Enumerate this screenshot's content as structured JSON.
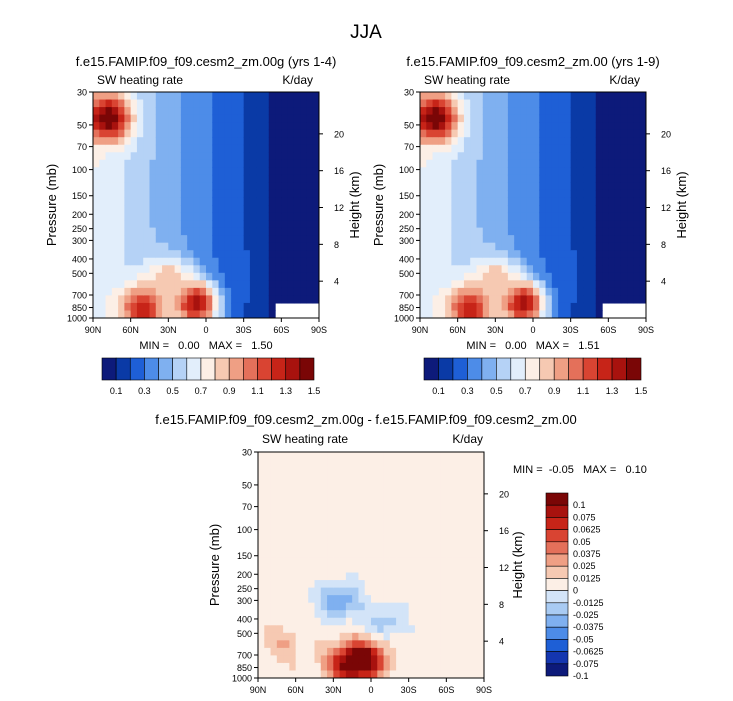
{
  "page_title": "JJA",
  "colors": {
    "background": "#ffffff",
    "text": "#000000",
    "absolute_scale": [
      "#0d1a7a",
      "#0a3aa6",
      "#1e5fd6",
      "#4d8ce8",
      "#7fb0f0",
      "#b5d2f6",
      "#e2eefb",
      "#fcefe6",
      "#f6c9b2",
      "#ef9f84",
      "#e4705a",
      "#d94432",
      "#c72418",
      "#a8120e",
      "#7a0606"
    ],
    "difference_scale": [
      "#0d1a7a",
      "#1436b0",
      "#1e5fd6",
      "#4d8ce8",
      "#7fb0f0",
      "#a9cbf3",
      "#d3e4f8",
      "#fcefe6",
      "#f6c9b2",
      "#ef9f84",
      "#e4705a",
      "#d94432",
      "#c72418",
      "#a8120e",
      "#7a0606"
    ]
  },
  "chart_data": [
    {
      "type": "heatmap",
      "title": "f.e15.FAMIP.f09_f09.cesm2_zm.00g (yrs 1-4)",
      "variable_label": "SW heating rate",
      "units_label": "K/day",
      "ylabel": "Pressure (mb)",
      "ylabel_right": "Height (km)",
      "x_tick_labels": [
        "90N",
        "60N",
        "30N",
        "0",
        "30S",
        "60S",
        "90S"
      ],
      "x_values": [
        90,
        60,
        30,
        0,
        -30,
        -60,
        -90
      ],
      "xlim": [
        90,
        -90
      ],
      "y_tick_labels": [
        "30",
        "50",
        "70",
        "100",
        "150",
        "200",
        "250",
        "300",
        "400",
        "500",
        "700",
        "850",
        "1000"
      ],
      "y_values": [
        30,
        50,
        70,
        100,
        150,
        200,
        250,
        300,
        400,
        500,
        700,
        850,
        1000
      ],
      "ylim": [
        30,
        1000
      ],
      "y_right_tick_labels": [
        "20",
        "16",
        "12",
        "8",
        "4"
      ],
      "y_right_values": [
        20,
        16,
        12,
        8,
        4
      ],
      "stats_text": "MIN =   0.00   MAX =   1.50",
      "min": 0.0,
      "max": 1.5,
      "colorbar_labels": [
        "0.1",
        "0.3",
        "0.5",
        "0.7",
        "0.9",
        "1.1",
        "1.3",
        "1.5"
      ],
      "colorbar_levels": [
        0.1,
        0.2,
        0.3,
        0.4,
        0.5,
        0.6,
        0.7,
        0.8,
        0.9,
        1.0,
        1.1,
        1.2,
        1.3,
        1.4,
        1.5
      ],
      "features": [
        {
          "lat": 50,
          "p": 850,
          "value": 1.3
        },
        {
          "lat": 8,
          "p": 790,
          "value": 1.4
        },
        {
          "lat": 30,
          "p": 550,
          "value": 0.9
        },
        {
          "lat": 78,
          "p": 45,
          "value": 1.5
        },
        {
          "lat": -30,
          "p": 500,
          "value": 0.25
        },
        {
          "lat": -75,
          "p": 400,
          "value": 0.05
        }
      ]
    },
    {
      "type": "heatmap",
      "title": "f.e15.FAMIP.f09_f09.cesm2_zm.00 (yrs 1-9)",
      "variable_label": "SW heating rate",
      "units_label": "K/day",
      "ylabel": "Pressure (mb)",
      "ylabel_right": "Height (km)",
      "x_tick_labels": [
        "90N",
        "60N",
        "30N",
        "0",
        "30S",
        "60S",
        "90S"
      ],
      "x_values": [
        90,
        60,
        30,
        0,
        -30,
        -60,
        -90
      ],
      "xlim": [
        90,
        -90
      ],
      "y_tick_labels": [
        "30",
        "50",
        "70",
        "100",
        "150",
        "200",
        "250",
        "300",
        "400",
        "500",
        "700",
        "850",
        "1000"
      ],
      "y_values": [
        30,
        50,
        70,
        100,
        150,
        200,
        250,
        300,
        400,
        500,
        700,
        850,
        1000
      ],
      "ylim": [
        30,
        1000
      ],
      "y_right_tick_labels": [
        "20",
        "16",
        "12",
        "8",
        "4"
      ],
      "y_right_values": [
        20,
        16,
        12,
        8,
        4
      ],
      "stats_text": "MIN =   0.00   MAX =   1.51",
      "min": 0.0,
      "max": 1.51,
      "colorbar_labels": [
        "0.1",
        "0.3",
        "0.5",
        "0.7",
        "0.9",
        "1.1",
        "1.3",
        "1.5"
      ],
      "colorbar_levels": [
        0.1,
        0.2,
        0.3,
        0.4,
        0.5,
        0.6,
        0.7,
        0.8,
        0.9,
        1.0,
        1.1,
        1.2,
        1.3,
        1.4,
        1.5
      ],
      "features": [
        {
          "lat": 50,
          "p": 850,
          "value": 1.3
        },
        {
          "lat": 8,
          "p": 790,
          "value": 1.4
        },
        {
          "lat": 30,
          "p": 550,
          "value": 0.9
        },
        {
          "lat": 78,
          "p": 45,
          "value": 1.5
        },
        {
          "lat": -30,
          "p": 500,
          "value": 0.25
        },
        {
          "lat": -75,
          "p": 400,
          "value": 0.05
        }
      ]
    },
    {
      "type": "heatmap",
      "title": "f.e15.FAMIP.f09_f09.cesm2_zm.00g - f.e15.FAMIP.f09_f09.cesm2_zm.00",
      "variable_label": "SW heating rate",
      "units_label": "K/day",
      "ylabel": "Pressure (mb)",
      "ylabel_right": "Height (km)",
      "x_tick_labels": [
        "90N",
        "60N",
        "30N",
        "0",
        "30S",
        "60S",
        "90S"
      ],
      "x_values": [
        90,
        60,
        30,
        0,
        -30,
        -60,
        -90
      ],
      "xlim": [
        90,
        -90
      ],
      "y_tick_labels": [
        "30",
        "50",
        "70",
        "100",
        "150",
        "200",
        "250",
        "300",
        "400",
        "500",
        "700",
        "850",
        "1000"
      ],
      "y_values": [
        30,
        50,
        70,
        100,
        150,
        200,
        250,
        300,
        400,
        500,
        700,
        850,
        1000
      ],
      "ylim": [
        30,
        1000
      ],
      "y_right_tick_labels": [
        "20",
        "16",
        "12",
        "8",
        "4"
      ],
      "y_right_values": [
        20,
        16,
        12,
        8,
        4
      ],
      "stats_text": "MIN =  -0.05   MAX =   0.10",
      "min": -0.05,
      "max": 0.1,
      "colorbar_labels": [
        "0.1",
        "0.075",
        "0.0625",
        "0.05",
        "0.0375",
        "0.025",
        "0.0125",
        "0",
        "-0.0125",
        "-0.025",
        "-0.0375",
        "-0.05",
        "-0.0625",
        "-0.075",
        "-0.1"
      ],
      "colorbar_levels": [
        -0.1,
        -0.075,
        -0.0625,
        -0.05,
        -0.0375,
        -0.025,
        -0.0125,
        0,
        0.0125,
        0.025,
        0.0375,
        0.05,
        0.0625,
        0.075,
        0.1
      ],
      "features": [
        {
          "lat": 5,
          "p": 750,
          "value": 0.1
        },
        {
          "lat": 20,
          "p": 820,
          "value": 0.07
        },
        {
          "lat": 25,
          "p": 300,
          "value": -0.05
        },
        {
          "lat": -10,
          "p": 420,
          "value": -0.03
        },
        {
          "lat": 70,
          "p": 600,
          "value": 0.02
        }
      ]
    }
  ]
}
